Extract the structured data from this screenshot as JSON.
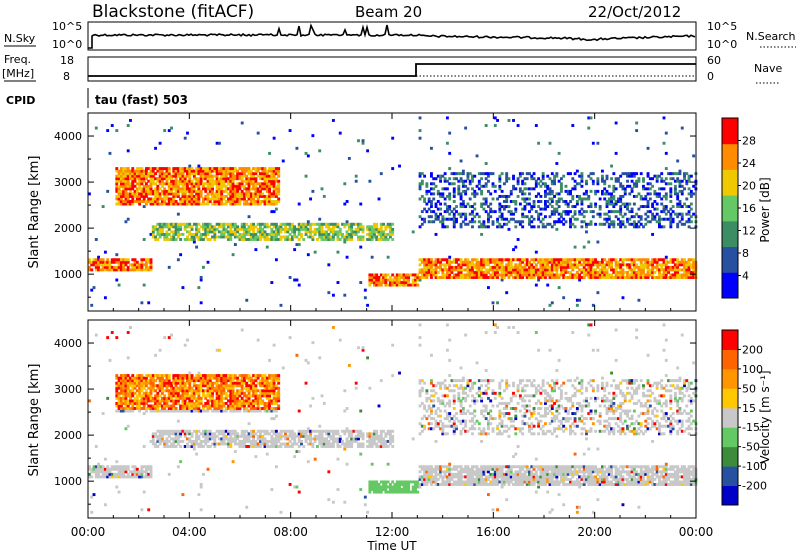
{
  "header": {
    "station": "Blackstone (fitACF)",
    "beam": "Beam 20",
    "date": "22/Oct/2012"
  },
  "noise_panel": {
    "left_label": "N.Sky",
    "right_label": "N.Search",
    "left_ticks": [
      "10^5",
      "10^0"
    ],
    "right_ticks": [
      "10^5",
      "10^0"
    ]
  },
  "freq_panel": {
    "left_label_1": "Freq.",
    "left_label_2": "[MHz]",
    "right_label": "Nave",
    "left_ticks": [
      "18",
      "8"
    ],
    "right_ticks": [
      "60",
      "0"
    ]
  },
  "cpid_panel": {
    "label": "CPID",
    "value": "tau (fast) 503"
  },
  "chart_data": [
    {
      "type": "heatmap",
      "quantity": "Power",
      "ylabel": "Slant Range [km]",
      "ylim": [
        200,
        4500
      ],
      "yticks": [
        "4000",
        "3000",
        "2000",
        "1000"
      ],
      "colorbar_label": "Power [dB]",
      "colorbar_ticks": [
        "28",
        "24",
        "20",
        "16",
        "12",
        "8",
        "4"
      ],
      "colors": [
        "#0000ff",
        "#2850a0",
        "#3c8c64",
        "#64c864",
        "#f0c800",
        "#ff8c00",
        "#ff0000"
      ],
      "echo_bands": [
        {
          "t_start": 0.0,
          "t_end": 2.5,
          "range_km": [
            1050,
            1300
          ],
          "level": "high"
        },
        {
          "t_start": 2.5,
          "t_end": 12.0,
          "range_km": [
            1700,
            2100
          ],
          "level": "mid"
        },
        {
          "t_start": 1.0,
          "t_end": 7.5,
          "range_km": [
            2500,
            3300
          ],
          "level": "high"
        },
        {
          "t_start": 11.0,
          "t_end": 13.0,
          "range_km": [
            700,
            1000
          ],
          "level": "high"
        },
        {
          "t_start": 13.0,
          "t_end": 24.0,
          "range_km": [
            900,
            1300
          ],
          "level": "high"
        },
        {
          "t_start": 13.0,
          "t_end": 24.0,
          "range_km": [
            2000,
            3200
          ],
          "level": "low"
        }
      ]
    },
    {
      "type": "heatmap",
      "quantity": "Velocity",
      "xlabel": "Time UT",
      "xticks": [
        "00:00",
        "04:00",
        "08:00",
        "12:00",
        "16:00",
        "20:00",
        "00:00"
      ],
      "ylabel": "Slant Range [km]",
      "ylim": [
        200,
        4500
      ],
      "yticks": [
        "4000",
        "3000",
        "2000",
        "1000"
      ],
      "colorbar_label": "Velocity [m s⁻¹]",
      "colorbar_ticks": [
        "200",
        "100",
        "50",
        "15",
        "-15",
        "-50",
        "-100",
        "-200"
      ],
      "colors": [
        "#ff0000",
        "#ff6400",
        "#ff9600",
        "#ffc800",
        "#c8c8c8",
        "#64c864",
        "#3c8c3c",
        "#2850a0",
        "#0000c8"
      ]
    }
  ]
}
